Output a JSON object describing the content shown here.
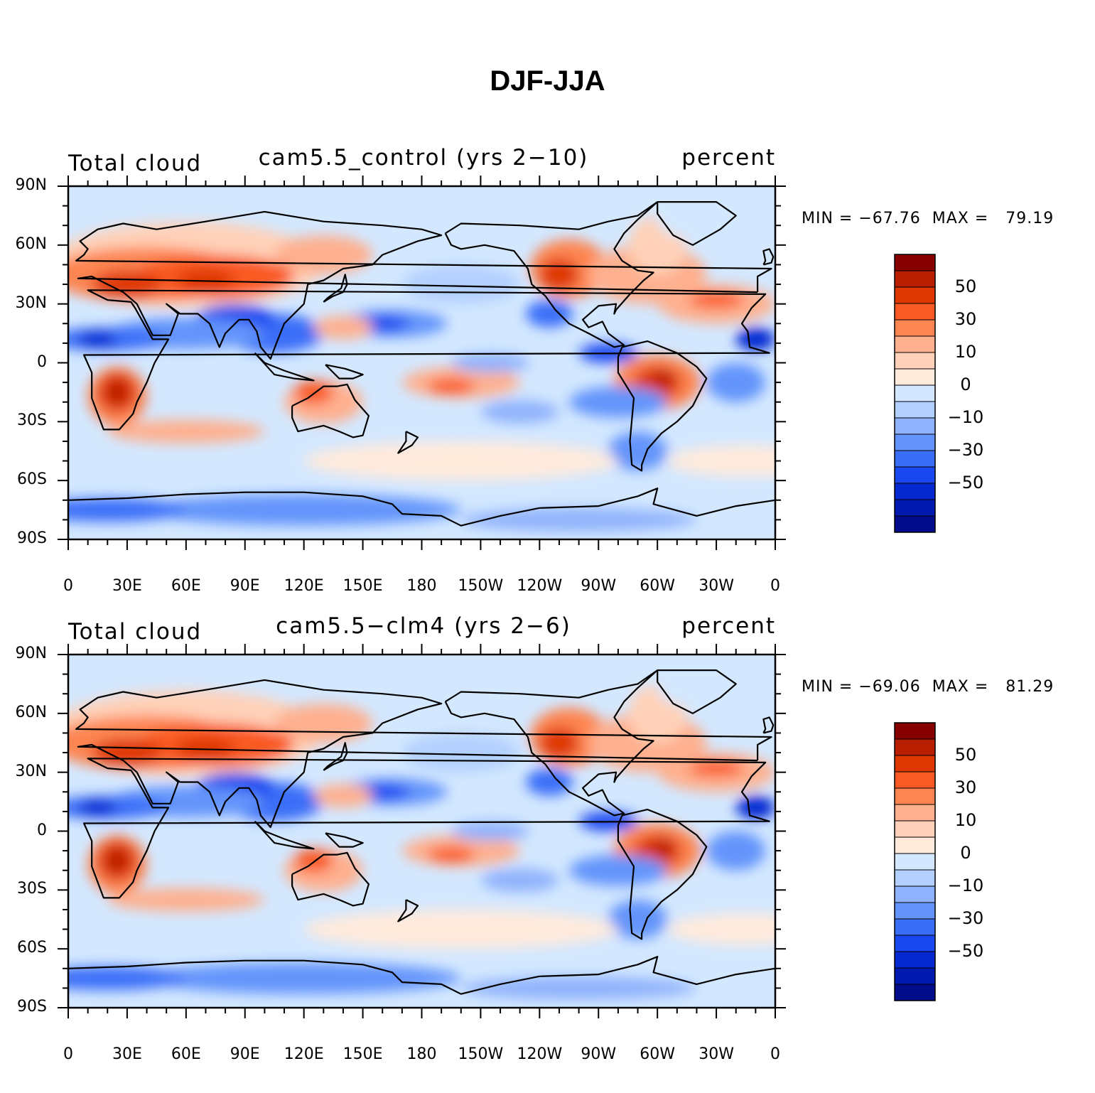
{
  "title": "DJF-JJA",
  "panels": [
    {
      "left_title": "Total cloud",
      "center_title": "cam5.5_control (yrs 2−10)",
      "right_title": "percent",
      "min_label": "MIN = −67.76",
      "max_label": "MAX =   79.19",
      "min_value": -67.76,
      "max_value": 79.19
    },
    {
      "left_title": "Total cloud",
      "center_title": "cam5.5−clm4 (yrs 2−6)",
      "right_title": "percent",
      "min_label": "MIN = −69.06",
      "max_label": "MAX =   81.29",
      "min_value": -69.06,
      "max_value": 81.29
    }
  ],
  "lat_labels": [
    "90N",
    "60N",
    "30N",
    "0",
    "30S",
    "60S",
    "90S"
  ],
  "lon_labels": [
    "0",
    "30E",
    "60E",
    "90E",
    "120E",
    "150E",
    "180",
    "150W",
    "120W",
    "90W",
    "60W",
    "30W",
    "0"
  ],
  "colorbar": {
    "labels": [
      "50",
      "30",
      "10",
      "0",
      "−10",
      "−30",
      "−50"
    ],
    "colors": [
      "#870000",
      "#b81e00",
      "#de3700",
      "#f95a23",
      "#fd8551",
      "#feb08f",
      "#ffd1b8",
      "#ffeadb",
      "#d3e8ff",
      "#b3d0ff",
      "#90b2fc",
      "#6494fb",
      "#3b6ef8",
      "#1a48f0",
      "#0628d1",
      "#001ab0",
      "#000c8a"
    ]
  },
  "icons": {
    "continents": "coastline-outline-icon"
  }
}
